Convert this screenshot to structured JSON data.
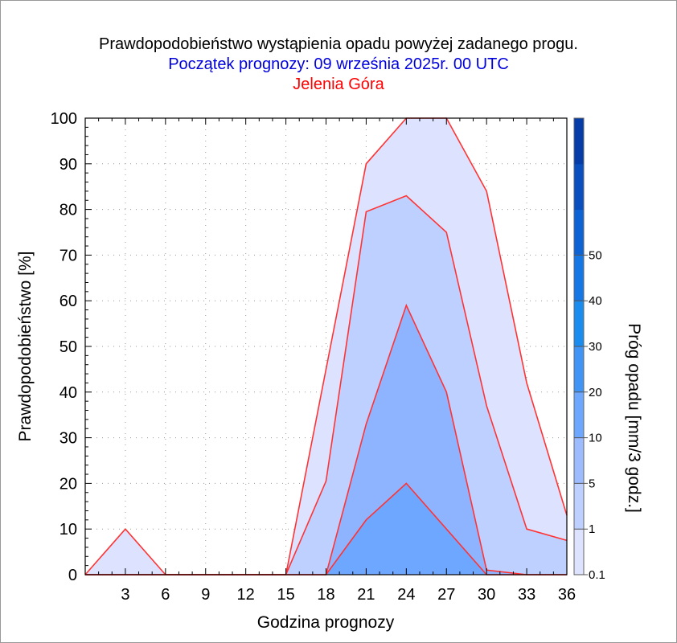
{
  "chart_data": {
    "type": "area",
    "title": "Prawdopodobieństwo wystąpienia opadu powyżej zadanego progu.",
    "subtitle": "Początek prognozy: 09 września 2025r. 00 UTC",
    "location": "Jelenia Góra",
    "xlabel": "Godzina prognozy",
    "ylabel": "Prawdopodobieństwo [%]",
    "colorbar_label": "Próg opadu [mm/3 godz.]",
    "xlim": [
      0,
      36
    ],
    "ylim": [
      0,
      100
    ],
    "x_ticks": [
      3,
      6,
      9,
      12,
      15,
      18,
      21,
      24,
      27,
      30,
      33,
      36
    ],
    "y_ticks": [
      0,
      10,
      20,
      30,
      40,
      50,
      60,
      70,
      80,
      90,
      100
    ],
    "x": [
      0,
      3,
      6,
      9,
      12,
      15,
      18,
      21,
      24,
      27,
      30,
      33,
      36
    ],
    "series": [
      {
        "name": "0.1",
        "color": "#dde3ff",
        "values": [
          0,
          10,
          0,
          0,
          0,
          0,
          45,
          90,
          100,
          100,
          84,
          42,
          13
        ]
      },
      {
        "name": "1",
        "color": "#bdd0ff",
        "values": [
          0,
          0,
          0,
          0,
          0,
          0,
          20.5,
          79.5,
          83,
          75,
          37,
          10,
          7.5
        ]
      },
      {
        "name": "5",
        "color": "#8fb4ff",
        "values": [
          0,
          0,
          0,
          0,
          0,
          0,
          0,
          33,
          59,
          40,
          1,
          0,
          0
        ]
      },
      {
        "name": "10",
        "color": "#6ea7ff",
        "values": [
          0,
          0,
          0,
          0,
          0,
          0,
          0,
          12,
          20,
          10,
          0,
          0,
          0
        ]
      }
    ],
    "colorbar": {
      "labels": [
        "0.1",
        "1",
        "5",
        "10",
        "20",
        "30",
        "40",
        "50"
      ],
      "colors": [
        "#dde3ff",
        "#bdd0ff",
        "#9cbcff",
        "#6ea7ff",
        "#3f94f5",
        "#1b8cef",
        "#1577e6",
        "#0e63d4",
        "#0a4fc0",
        "#063ca8"
      ]
    },
    "grid": true,
    "line_color": "#ff3333"
  }
}
